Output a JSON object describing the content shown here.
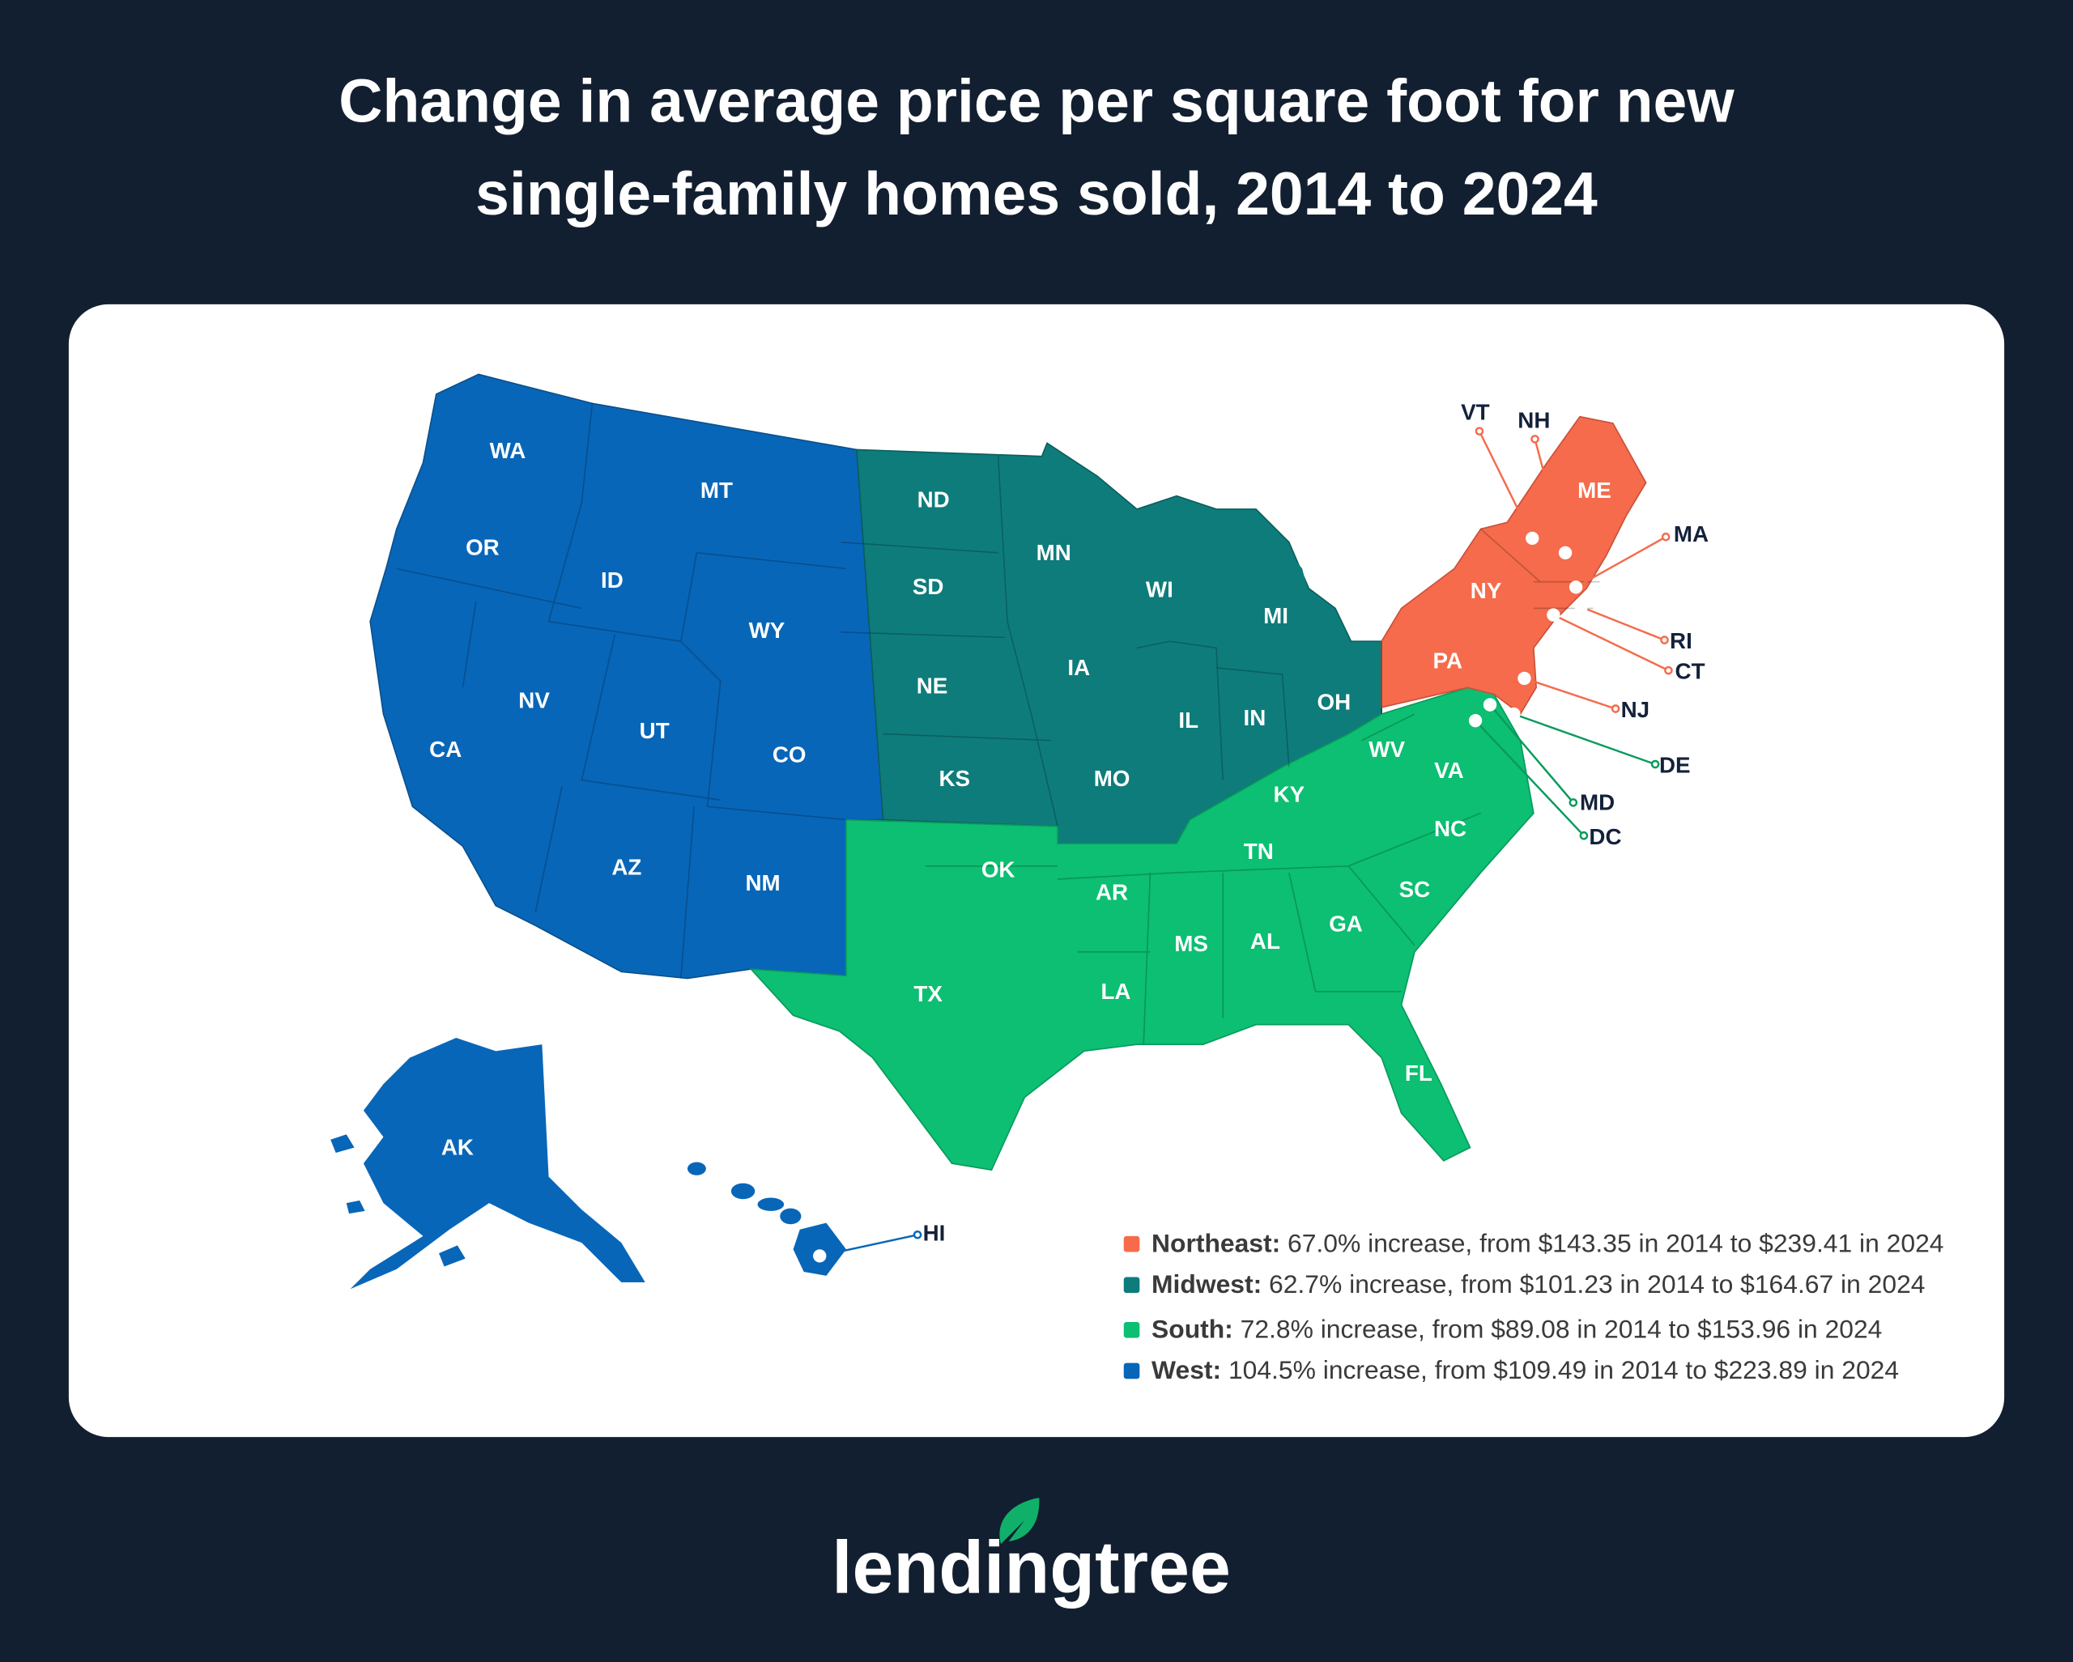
{
  "title_line1": "Change in average price per square foot for new",
  "title_line2": "single-family homes sold, 2014 to 2024",
  "colors": {
    "background": "#121f30",
    "northeast": "#f56b4b",
    "midwest": "#0e7c7b",
    "south": "#0cbf72",
    "west": "#0866b8"
  },
  "states": {
    "WA": "WA",
    "OR": "OR",
    "CA": "CA",
    "NV": "NV",
    "ID": "ID",
    "MT": "MT",
    "WY": "WY",
    "UT": "UT",
    "CO": "CO",
    "AZ": "AZ",
    "NM": "NM",
    "AK": "AK",
    "HI": "HI",
    "ND": "ND",
    "SD": "SD",
    "NE": "NE",
    "KS": "KS",
    "MN": "MN",
    "IA": "IA",
    "MO": "MO",
    "WI": "WI",
    "IL": "IL",
    "IN": "IN",
    "MI": "MI",
    "OH": "OH",
    "OK": "OK",
    "TX": "TX",
    "AR": "AR",
    "LA": "LA",
    "MS": "MS",
    "AL": "AL",
    "TN": "TN",
    "KY": "KY",
    "WV": "WV",
    "VA": "VA",
    "NC": "NC",
    "SC": "SC",
    "GA": "GA",
    "FL": "FL",
    "DE": "DE",
    "MD": "MD",
    "DC": "DC",
    "PA": "PA",
    "NY": "NY",
    "NJ": "NJ",
    "CT": "CT",
    "RI": "RI",
    "MA": "MA",
    "VT": "VT",
    "NH": "NH",
    "ME": "ME"
  },
  "legend": [
    {
      "region": "Northeast:",
      "text": " 67.0% increase, from $143.35 in 2014 to $239.41 in 2024"
    },
    {
      "region": "Midwest:",
      "text": " 62.7% increase, from $101.23 in 2014 to $164.67 in 2024"
    },
    {
      "region": "South:",
      "text": " 72.8% increase, from $89.08 in 2014 to $153.96 in 2024"
    },
    {
      "region": "West:",
      "text": " 104.5% increase, from $109.49 in 2014 to $223.89 in 2024"
    }
  ],
  "chart_data": {
    "type": "map",
    "title": "Change in average price per square foot for new single-family homes sold, 2014 to 2024",
    "units": "USD per square foot",
    "regions": [
      {
        "name": "Northeast",
        "pct_change": 67.0,
        "price_2014": 143.35,
        "price_2024": 239.41
      },
      {
        "name": "Midwest",
        "pct_change": 62.7,
        "price_2014": 101.23,
        "price_2024": 164.67
      },
      {
        "name": "South",
        "pct_change": 72.8,
        "price_2014": 89.08,
        "price_2024": 153.96
      },
      {
        "name": "West",
        "pct_change": 104.5,
        "price_2014": 109.49,
        "price_2024": 223.89
      }
    ]
  },
  "logo": "lendingtree"
}
